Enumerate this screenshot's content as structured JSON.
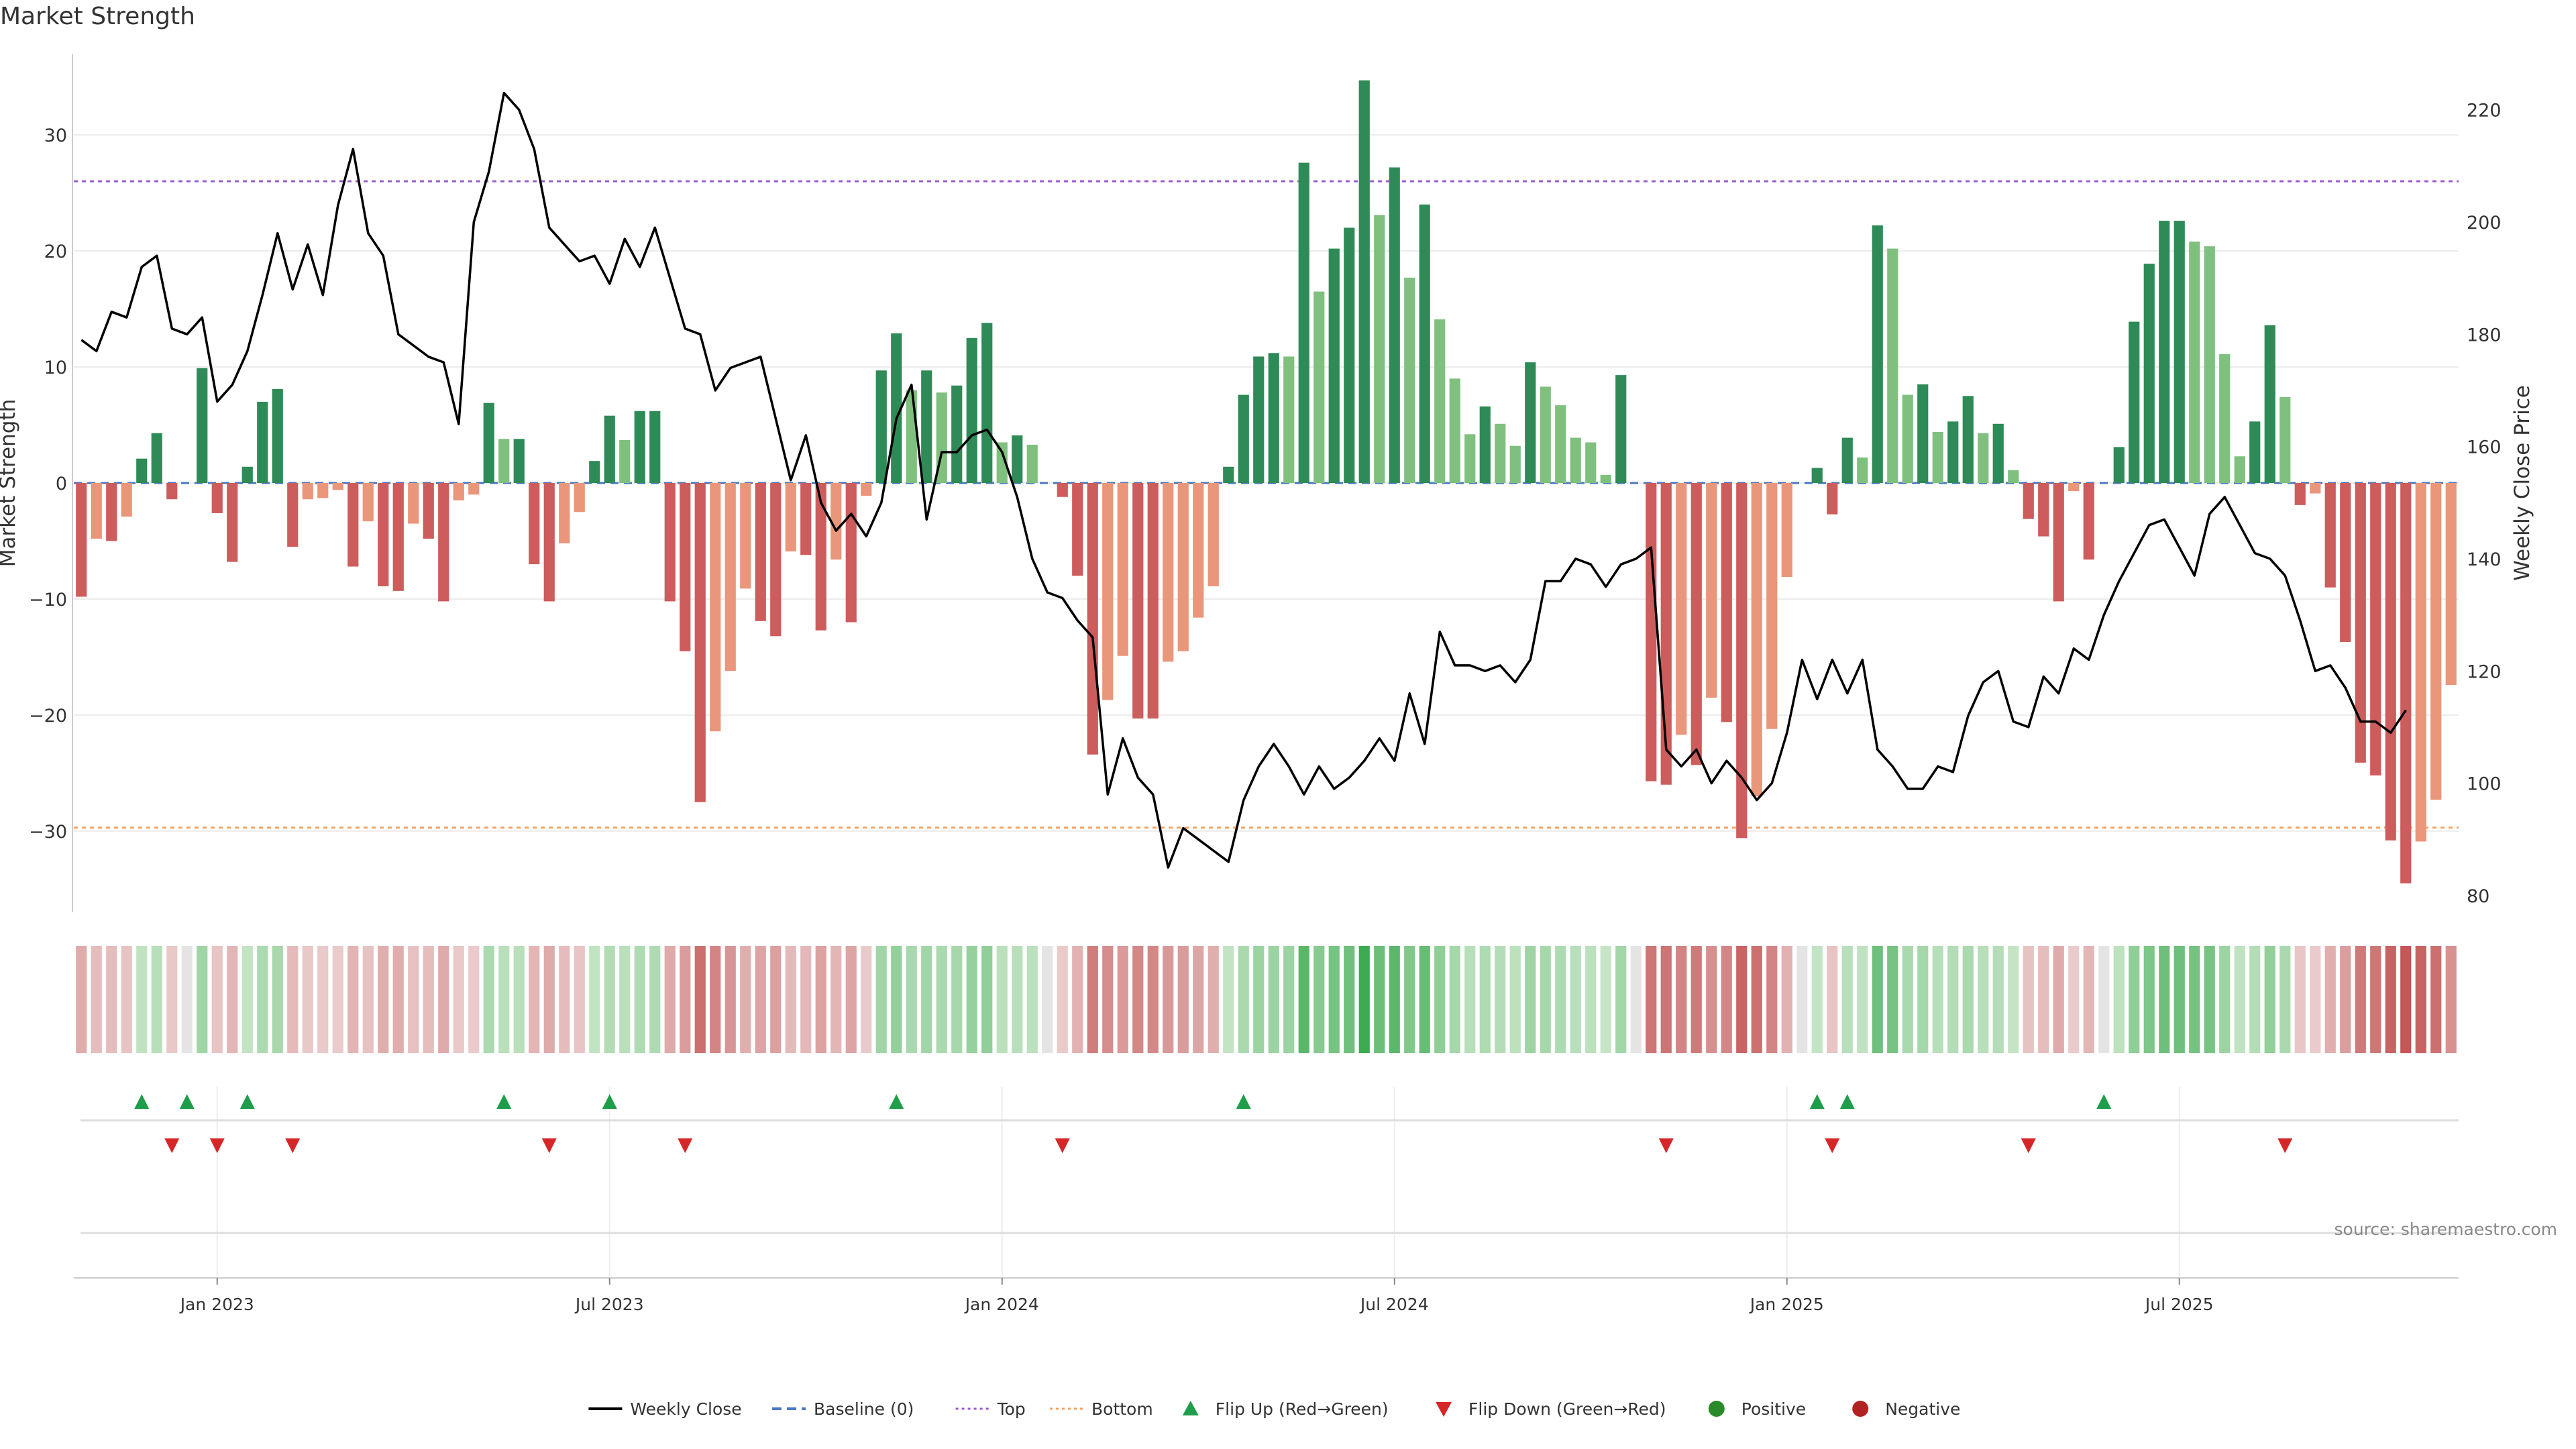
{
  "chart_title": "Market Strength",
  "source": "source: sharemaestro.com",
  "chart_data": {
    "type": "bar",
    "title": "Market Strength",
    "ylabel": "Market Strength",
    "y2label": "Weekly Close Price",
    "ylim": [
      -37,
      37
    ],
    "y2lim": [
      77,
      230
    ],
    "yticks": [
      30,
      20,
      10,
      0,
      -10,
      -20,
      -30
    ],
    "ytick_labels": [
      "30",
      "20",
      "10",
      "0",
      "−10",
      "−20",
      "−30"
    ],
    "y2ticks": [
      220,
      200,
      180,
      160,
      140,
      120,
      100,
      80
    ],
    "y2tick_labels": [
      "220",
      "200",
      "180",
      "160",
      "140",
      "120",
      "100",
      "80"
    ],
    "x_ticks": [
      {
        "label": "Jan 2023",
        "week": 9
      },
      {
        "label": "Jul 2023",
        "week": 35
      },
      {
        "label": "Jan 2024",
        "week": 61
      },
      {
        "label": "Jul 2024",
        "week": 87
      },
      {
        "label": "Jan 2025",
        "week": 113
      },
      {
        "label": "Jul 2025",
        "week": 139
      }
    ],
    "reference_lines": {
      "top": 26,
      "bottom": -29.7,
      "baseline": 0
    },
    "grid": true,
    "legend_position": "bottom-center",
    "colors": {
      "positive_strong": "#2e8b57",
      "positive_weak": "#7fc07f",
      "negative_strong": "#cd5c5c",
      "negative_weak": "#e9967a",
      "line": "#000000",
      "top": "#9b59d0",
      "bottom": "#f4a261",
      "baseline": "#4a78c2",
      "flip_up": "#1e9e4a",
      "flip_down": "#d62728"
    },
    "series": [
      {
        "name": "Market Strength",
        "values": [
          -9.8,
          -4.8,
          -5,
          -2.9,
          2.1,
          4.3,
          -1.4,
          0,
          9.9,
          -2.6,
          -6.8,
          1.4,
          7,
          8.1,
          -5.5,
          -1.4,
          -1.3,
          -0.6,
          -7.2,
          -3.3,
          -8.9,
          -9.3,
          -3.5,
          -4.8,
          -10.2,
          -1.5,
          -1,
          6.9,
          3.8,
          3.8,
          -7,
          -10.2,
          -5.2,
          -2.5,
          1.9,
          5.8,
          3.7,
          6.2,
          6.2,
          -10.2,
          -14.5,
          -27.5,
          -21.4,
          -16.2,
          -9.1,
          -11.9,
          -13.2,
          -5.9,
          -6.2,
          -12.7,
          -6.6,
          -12,
          -1.1,
          9.7,
          12.9,
          8,
          9.7,
          7.8,
          8.4,
          12.5,
          13.8,
          3.5,
          4.1,
          3.3,
          0,
          -1.2,
          -8,
          -23.4,
          -18.7,
          -14.9,
          -20.3,
          -20.3,
          -15.4,
          -14.5,
          -11.6,
          -8.9,
          1.4,
          7.6,
          10.9,
          11.2,
          10.9,
          27.6,
          16.5,
          20.2,
          22,
          34.7,
          23.1,
          27.2,
          17.7,
          24,
          14.1,
          9,
          4.2,
          6.6,
          5.1,
          3.2,
          10.4,
          8.3,
          6.7,
          3.9,
          3.5,
          0.7,
          9.3,
          0,
          -25.7,
          -26,
          -21.7,
          -24.3,
          -18.5,
          -20.6,
          -30.6,
          -27,
          -21.2,
          -8.1,
          0,
          1.3,
          -2.7,
          3.9,
          2.2,
          22.2,
          20.2,
          7.6,
          8.5,
          4.4,
          5.3,
          7.5,
          4.3,
          5.1,
          1.1,
          -3.1,
          -4.6,
          -10.2,
          -0.7,
          -6.6,
          0,
          3.1,
          13.9,
          18.9,
          22.6,
          22.6,
          20.8,
          20.4,
          11.1,
          2.3,
          5.3,
          13.6,
          7.4,
          -1.9,
          -0.9,
          -9,
          -13.7,
          -24.1,
          -25.2,
          -30.8,
          -34.5,
          -30.9,
          -27.3,
          -17.4
        ]
      },
      {
        "name": "Weekly Close",
        "values": [
          179,
          177,
          184,
          183,
          192,
          194,
          181,
          180,
          183,
          168,
          171,
          177,
          187,
          198,
          188,
          196,
          187,
          203,
          213,
          198,
          194,
          180,
          178,
          176,
          175,
          164,
          200,
          209,
          223,
          220,
          213,
          199,
          196,
          193,
          194,
          189,
          197,
          192,
          199,
          190,
          181,
          180,
          170,
          174,
          175,
          176,
          165,
          154,
          162,
          150,
          145,
          148,
          144,
          150,
          165,
          171,
          147,
          159,
          159,
          162,
          163,
          159,
          151,
          140,
          134,
          133,
          129,
          126,
          98,
          108,
          101,
          98,
          85,
          92,
          90,
          88,
          86,
          97,
          103,
          107,
          103,
          98,
          103,
          99,
          101,
          104,
          108,
          104,
          116,
          107,
          127,
          121,
          121,
          120,
          121,
          118,
          122,
          136,
          136,
          140,
          139,
          135,
          139,
          140,
          142,
          106,
          103,
          106,
          100,
          104,
          101,
          97,
          100,
          109,
          122,
          115,
          122,
          116,
          122,
          106,
          103,
          99,
          99,
          103,
          102,
          112,
          118,
          120,
          111,
          110,
          119,
          116,
          124,
          122,
          130,
          136,
          141,
          146,
          147,
          142,
          137,
          148,
          151,
          146,
          141,
          140,
          137,
          129,
          120,
          121,
          117,
          111,
          111,
          109,
          113
        ]
      }
    ],
    "flip_up_weeks": [
      4,
      7,
      11,
      28,
      35,
      54,
      77,
      115,
      117,
      134
    ],
    "flip_down_weeks": [
      6,
      9,
      14,
      31,
      40,
      65,
      105,
      116,
      129,
      146
    ],
    "legend": [
      {
        "label": "Weekly Close",
        "kind": "solid-line",
        "color": "#000000"
      },
      {
        "label": "Baseline (0)",
        "kind": "dashed-line",
        "color": "#4a78c2"
      },
      {
        "label": "Top",
        "kind": "dotted-line",
        "color": "#9b59d0"
      },
      {
        "label": "Bottom",
        "kind": "dotted-line",
        "color": "#f4a261"
      },
      {
        "label": "Flip Up (Red→Green)",
        "kind": "triangle-up",
        "color": "#1e9e4a"
      },
      {
        "label": "Flip Down (Green→Red)",
        "kind": "triangle-down",
        "color": "#d62728"
      },
      {
        "label": "Positive",
        "kind": "dot",
        "color": "#2a8a2a"
      },
      {
        "label": "Negative",
        "kind": "dot",
        "color": "#b22222"
      }
    ]
  }
}
